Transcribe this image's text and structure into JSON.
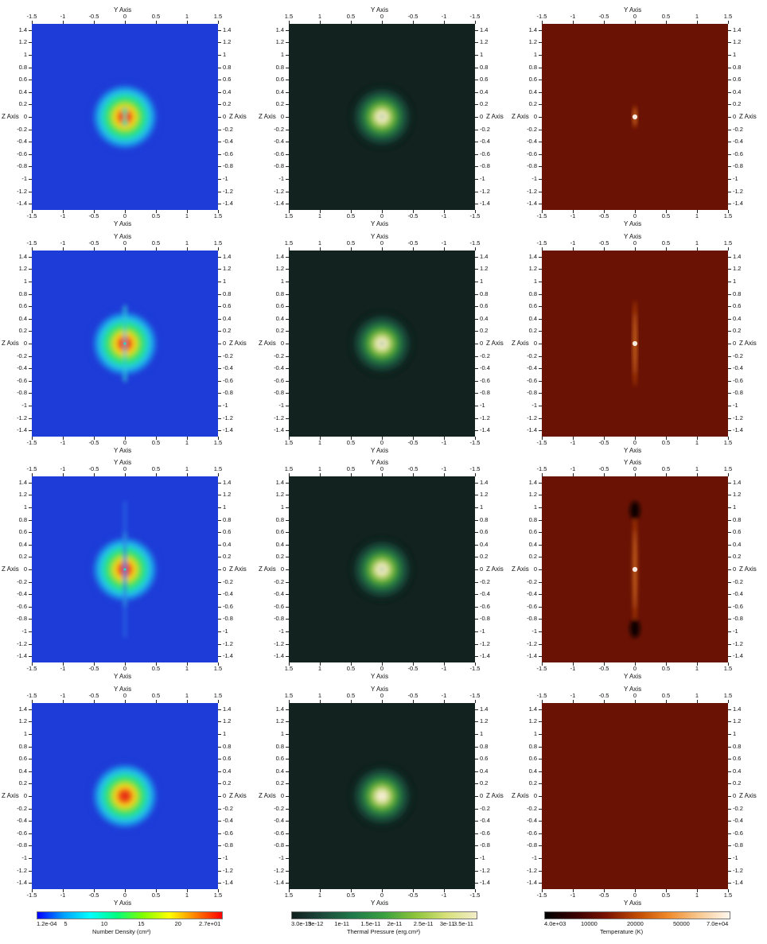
{
  "axes": {
    "y_label": "Y Axis",
    "z_label": "Z Axis",
    "y_ticks_normal": [
      "-1.5",
      "-1",
      "-0.5",
      "0",
      "0.5",
      "1",
      "1.5"
    ],
    "y_ticks_reversed": [
      "1.5",
      "1",
      "0.5",
      "0",
      "-0.5",
      "-1",
      "-1.5"
    ],
    "z_ticks_left": [
      "1.4",
      "1.2",
      "1",
      "0.8",
      "0.6",
      "0.4",
      "0.2",
      "0",
      "-0.2",
      "-0.4",
      "-0.6",
      "-0.8",
      "-1",
      "-1.2",
      "-1.4"
    ],
    "z_ticks_right_col0_row0": [
      "1.4",
      "1.2",
      "1",
      "0.8",
      "0.6",
      "0.4",
      "0.2",
      "0",
      "-0.2",
      "-0.4",
      "-0.6",
      "-0.8",
      "-1",
      "-1.2",
      "-1.4"
    ]
  },
  "colorbars": [
    {
      "field": "density",
      "title": "Number Density (cm³)",
      "labels": [
        "1.2e-04",
        "5",
        "10",
        "15",
        "20",
        "2.7e+01"
      ],
      "stops": [
        "#0000ff",
        "#00a0ff",
        "#00ffff",
        "#00ff80",
        "#80ff00",
        "#ffff00",
        "#ff8000",
        "#ff0000"
      ]
    },
    {
      "field": "pressure",
      "title": "Thermal Pressure (erg.cm³)",
      "labels": [
        "3.0e-13",
        "5e-12",
        "1e-11",
        "1.5e-11",
        "2e-11",
        "2.5e-11",
        "3e-11",
        "3.5e-11"
      ],
      "stops": [
        "#0f1f1c",
        "#1d4a3c",
        "#1f7a4a",
        "#3aa040",
        "#8cc43a",
        "#d6e078",
        "#f2edc8"
      ]
    },
    {
      "field": "temperature",
      "title": "Temperature (K)",
      "labels": [
        "4.0e+03",
        "10000",
        "20000",
        "50000",
        "7.0e+04"
      ],
      "stops": [
        "#000000",
        "#3a0000",
        "#7a1400",
        "#c04a00",
        "#f08a2a",
        "#f8c890",
        "#fff8f0"
      ]
    }
  ],
  "panels": [
    {
      "row": 0,
      "col": 0,
      "field": "density",
      "lobes": [
        0.12
      ],
      "jet": 0,
      "tail": 0,
      "hot": 0
    },
    {
      "row": 0,
      "col": 1,
      "field": "pressure",
      "lobes": [
        0.12
      ],
      "jet": 0,
      "tail": 0,
      "hot": 0
    },
    {
      "row": 0,
      "col": 2,
      "field": "temperature",
      "lobes": [],
      "jet": 0.12,
      "tail": 0,
      "hot": 0.18
    },
    {
      "row": 1,
      "col": 0,
      "field": "density",
      "lobes": [],
      "jet": 0.62,
      "tail": 0,
      "hot": 0
    },
    {
      "row": 1,
      "col": 1,
      "field": "pressure",
      "lobes": [],
      "jet": 0.62,
      "tail": 0,
      "hot": 0
    },
    {
      "row": 1,
      "col": 2,
      "field": "temperature",
      "lobes": [],
      "jet": 0.65,
      "tail": 0,
      "hot": 0.7
    },
    {
      "row": 2,
      "col": 0,
      "field": "density",
      "lobes": [],
      "jet": 0.6,
      "tail": 1.1,
      "hot": 0
    },
    {
      "row": 2,
      "col": 1,
      "field": "pressure",
      "lobes": [],
      "jet": 0.5,
      "tail": 0,
      "hot": 0
    },
    {
      "row": 2,
      "col": 2,
      "field": "temperature",
      "lobes": [],
      "jet": 1.05,
      "tail": 1.05,
      "hot": 0.9
    },
    {
      "row": 3,
      "col": 0,
      "field": "density",
      "lobes": [],
      "jet": 0,
      "tail": 0,
      "hot": 0
    },
    {
      "row": 3,
      "col": 1,
      "field": "pressure",
      "lobes": [],
      "jet": 0,
      "tail": 0,
      "hot": 0
    },
    {
      "row": 3,
      "col": 2,
      "field": "temperature",
      "lobes": [],
      "jet": 0,
      "tail": 0,
      "hot": 0
    }
  ]
}
